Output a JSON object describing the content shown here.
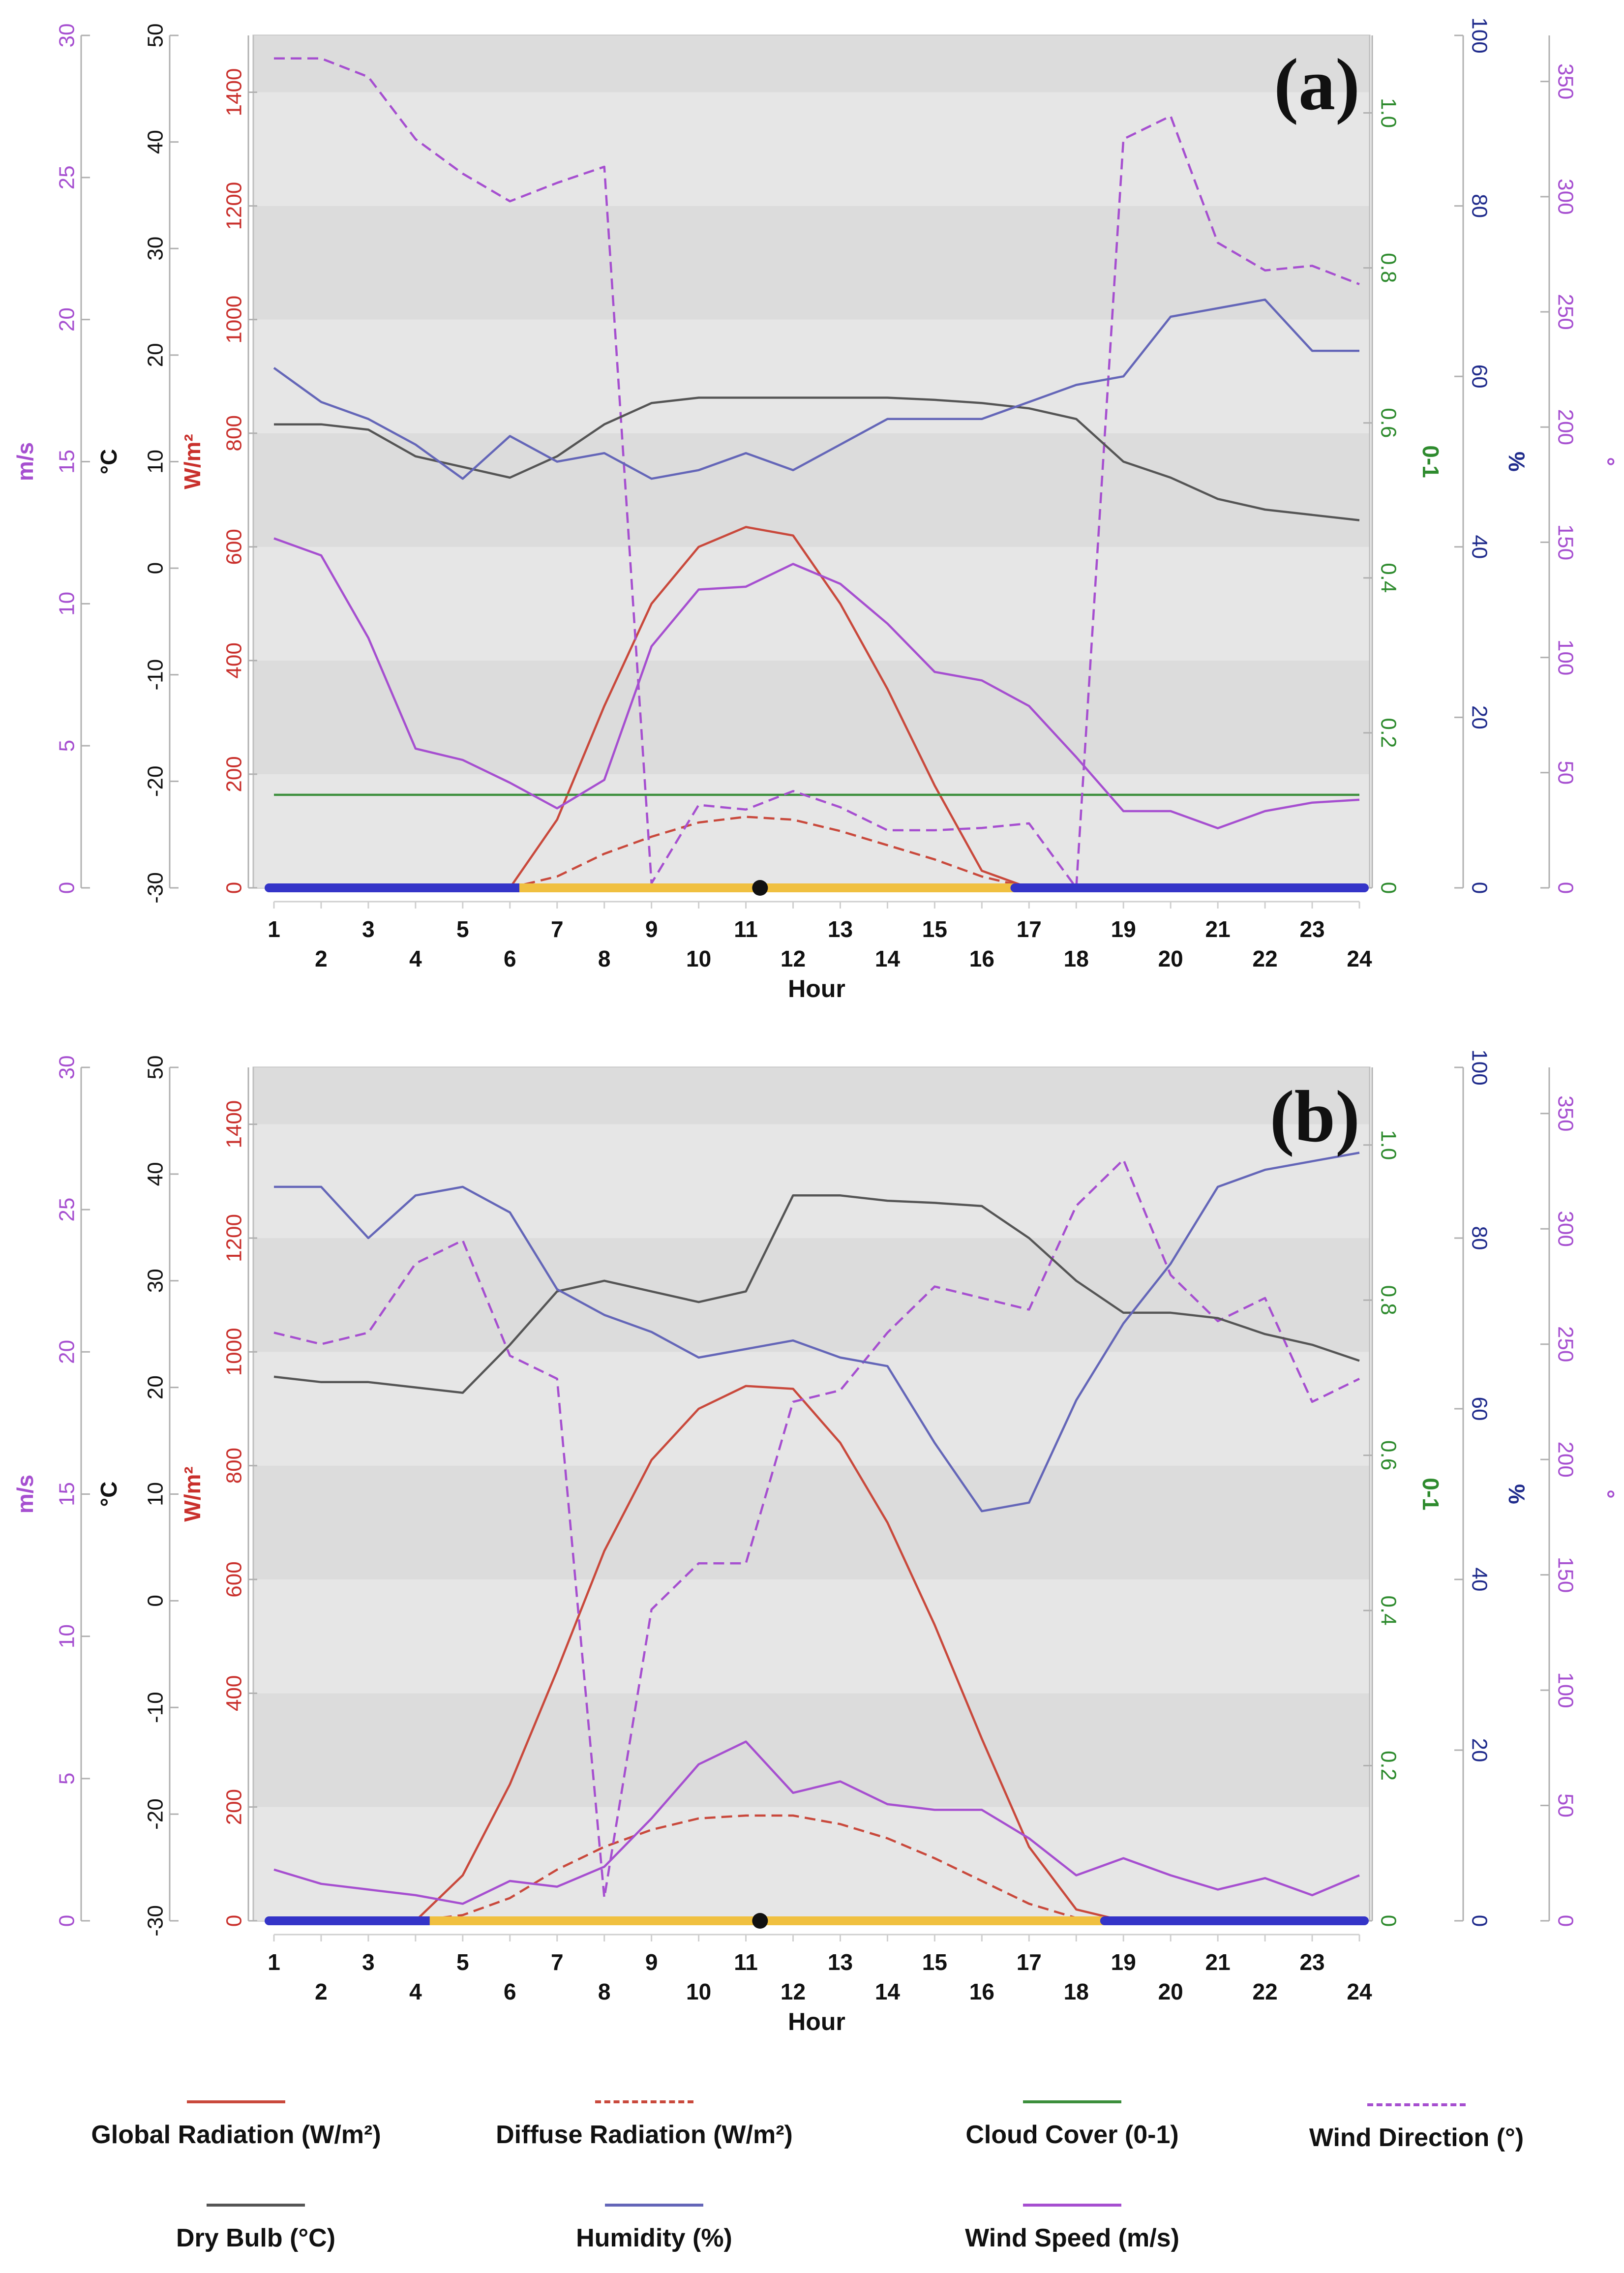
{
  "chart_data": [
    {
      "panel_label": "(a)",
      "type": "line",
      "xlabel": "Hour",
      "x": [
        1,
        2,
        3,
        4,
        5,
        6,
        7,
        8,
        9,
        10,
        11,
        12,
        13,
        14,
        15,
        16,
        17,
        18,
        19,
        20,
        21,
        22,
        23,
        24
      ],
      "xticks_top_row": [
        "1",
        "3",
        "5",
        "7",
        "9",
        "11",
        "13",
        "15",
        "17",
        "19",
        "21",
        "23"
      ],
      "xticks_bottom_row": [
        "2",
        "4",
        "6",
        "8",
        "10",
        "12",
        "14",
        "16",
        "18",
        "20",
        "22",
        "24"
      ],
      "axes": {
        "wind_speed": {
          "label": "m/s",
          "ylim": [
            0,
            30
          ],
          "ticks": [
            "0",
            "5",
            "10",
            "15",
            "20",
            "25",
            "30"
          ]
        },
        "dry_bulb": {
          "label": "°C",
          "ylim": [
            -30,
            50
          ],
          "ticks": [
            "-30",
            "-20",
            "-10",
            "0",
            "10",
            "20",
            "30",
            "40",
            "50"
          ]
        },
        "radiation": {
          "label": "W/m²",
          "ylim": [
            0,
            1500
          ],
          "ticks": [
            "0",
            "200",
            "400",
            "600",
            "800",
            "1000",
            "1200",
            "1400"
          ]
        },
        "cloud": {
          "label": "0-1",
          "ylim": [
            0,
            1.1
          ],
          "ticks": [
            "0",
            "0.2",
            "0.4",
            "0.6",
            "0.8",
            "1.0"
          ]
        },
        "humidity": {
          "label": "%",
          "ylim": [
            0,
            100
          ],
          "ticks": [
            "0",
            "20",
            "40",
            "60",
            "80",
            "100"
          ]
        },
        "wind_direction": {
          "label": "°",
          "ylim": [
            0,
            370
          ],
          "ticks": [
            "0",
            "50",
            "100",
            "150",
            "200",
            "250",
            "300",
            "350"
          ]
        }
      },
      "series": [
        {
          "name": "Global Radiation (W/m²)",
          "axis": "radiation",
          "color": "#c9493c",
          "dash": false,
          "values": [
            0,
            0,
            0,
            0,
            0,
            0,
            120,
            320,
            500,
            600,
            635,
            620,
            500,
            350,
            180,
            30,
            0,
            0,
            0,
            0,
            0,
            0,
            0,
            0
          ]
        },
        {
          "name": "Diffuse Radiation (W/m²)",
          "axis": "radiation",
          "color": "#c9493c",
          "dash": true,
          "values": [
            0,
            0,
            0,
            0,
            0,
            0,
            20,
            60,
            90,
            115,
            125,
            120,
            100,
            75,
            50,
            20,
            0,
            0,
            0,
            0,
            0,
            0,
            0,
            0
          ]
        },
        {
          "name": "Cloud Cover (0-1)",
          "axis": "cloud",
          "color": "#3c8f3c",
          "dash": false,
          "values": [
            0.12,
            0.12,
            0.12,
            0.12,
            0.12,
            0.12,
            0.12,
            0.12,
            0.12,
            0.12,
            0.12,
            0.12,
            0.12,
            0.12,
            0.12,
            0.12,
            0.12,
            0.12,
            0.12,
            0.12,
            0.12,
            0.12,
            0.12,
            0.12
          ]
        },
        {
          "name": "Wind Direction (°)",
          "axis": "wind_direction",
          "color": "#a64fd0",
          "dash": true,
          "values": [
            360,
            360,
            352,
            325,
            310,
            298,
            306,
            313,
            2,
            36,
            34,
            42,
            35,
            25,
            25,
            26,
            28,
            0,
            325,
            335,
            280,
            268,
            270,
            262
          ]
        },
        {
          "name": "Dry Bulb (°C)",
          "axis": "dry_bulb",
          "color": "#555555",
          "dash": false,
          "values": [
            13.5,
            13.5,
            13,
            10.5,
            9.5,
            8.5,
            10.5,
            13.5,
            15.5,
            16,
            16,
            16,
            16,
            16,
            15.8,
            15.5,
            15,
            14,
            10,
            8.5,
            6.5,
            5.5,
            5,
            4.5
          ]
        },
        {
          "name": "Humidity (%)",
          "axis": "humidity",
          "color": "#6466b8",
          "dash": false,
          "values": [
            61,
            57,
            55,
            52,
            48,
            53,
            50,
            51,
            48,
            49,
            51,
            49,
            52,
            55,
            55,
            55,
            57,
            59,
            60,
            67,
            68,
            69,
            63,
            63
          ]
        },
        {
          "name": "Wind Speed (m/s)",
          "axis": "wind_speed",
          "color": "#a64fd0",
          "dash": false,
          "values": [
            12.3,
            11.7,
            8.8,
            4.9,
            4.5,
            3.7,
            2.8,
            3.8,
            8.5,
            10.5,
            10.6,
            11.4,
            10.7,
            9.3,
            7.6,
            7.3,
            6.4,
            4.6,
            2.7,
            2.7,
            2.1,
            2.7,
            3,
            3.1
          ]
        }
      ],
      "daylight_bar": {
        "night_color": "#3434c8",
        "day_color": "#f0c040",
        "sunrise_hour": 6.2,
        "sunset_hour": 16.7,
        "marker_hour": 11.3
      }
    },
    {
      "panel_label": "(b)",
      "type": "line",
      "xlabel": "Hour",
      "x": [
        1,
        2,
        3,
        4,
        5,
        6,
        7,
        8,
        9,
        10,
        11,
        12,
        13,
        14,
        15,
        16,
        17,
        18,
        19,
        20,
        21,
        22,
        23,
        24
      ],
      "xticks_top_row": [
        "1",
        "3",
        "5",
        "7",
        "9",
        "11",
        "13",
        "15",
        "17",
        "19",
        "21",
        "23"
      ],
      "xticks_bottom_row": [
        "2",
        "4",
        "6",
        "8",
        "10",
        "12",
        "14",
        "16",
        "18",
        "20",
        "22",
        "24"
      ],
      "axes": {
        "wind_speed": {
          "label": "m/s",
          "ylim": [
            0,
            30
          ],
          "ticks": [
            "0",
            "5",
            "10",
            "15",
            "20",
            "25",
            "30"
          ]
        },
        "dry_bulb": {
          "label": "°C",
          "ylim": [
            -30,
            50
          ],
          "ticks": [
            "-30",
            "-20",
            "-10",
            "0",
            "10",
            "20",
            "30",
            "40",
            "50"
          ]
        },
        "radiation": {
          "label": "W/m²",
          "ylim": [
            0,
            1500
          ],
          "ticks": [
            "0",
            "200",
            "400",
            "600",
            "800",
            "1000",
            "1200",
            "1400"
          ]
        },
        "cloud": {
          "label": "0-1",
          "ylim": [
            0,
            1.1
          ],
          "ticks": [
            "0",
            "0.2",
            "0.4",
            "0.6",
            "0.8",
            "1.0"
          ]
        },
        "humidity": {
          "label": "%",
          "ylim": [
            0,
            100
          ],
          "ticks": [
            "0",
            "20",
            "40",
            "60",
            "80",
            "100"
          ]
        },
        "wind_direction": {
          "label": "°",
          "ylim": [
            0,
            370
          ],
          "ticks": [
            "0",
            "50",
            "100",
            "150",
            "200",
            "250",
            "300",
            "350"
          ]
        }
      },
      "series": [
        {
          "name": "Global Radiation (W/m²)",
          "axis": "radiation",
          "color": "#c9493c",
          "dash": false,
          "values": [
            0,
            0,
            0,
            0,
            80,
            240,
            440,
            650,
            810,
            900,
            940,
            935,
            840,
            700,
            520,
            320,
            130,
            20,
            0,
            0,
            0,
            0,
            0,
            0
          ]
        },
        {
          "name": "Diffuse Radiation (W/m²)",
          "axis": "radiation",
          "color": "#c9493c",
          "dash": true,
          "values": [
            0,
            0,
            0,
            0,
            10,
            40,
            90,
            130,
            160,
            180,
            185,
            185,
            170,
            145,
            110,
            70,
            30,
            5,
            0,
            0,
            0,
            0,
            0,
            0
          ]
        },
        {
          "name": "Cloud Cover (0-1)",
          "axis": "cloud",
          "color": "#3c8f3c",
          "dash": false,
          "values": [
            0,
            0,
            0,
            0,
            0,
            0,
            0,
            0,
            0,
            0,
            0,
            0,
            0,
            0,
            0,
            0,
            0,
            0,
            0,
            0,
            0,
            0,
            0,
            0
          ]
        },
        {
          "name": "Wind Direction (°)",
          "axis": "wind_direction",
          "color": "#a64fd0",
          "dash": true,
          "values": [
            255,
            250,
            255,
            285,
            295,
            245,
            235,
            10,
            135,
            155,
            155,
            225,
            230,
            255,
            275,
            270,
            265,
            310,
            330,
            280,
            260,
            270,
            225,
            235
          ]
        },
        {
          "name": "Dry Bulb (°C)",
          "axis": "dry_bulb",
          "color": "#555555",
          "dash": false,
          "values": [
            21,
            20.5,
            20.5,
            20,
            19.5,
            24,
            29,
            30,
            29,
            28,
            29,
            38,
            38,
            37.5,
            37.3,
            37,
            34,
            30,
            27,
            27,
            26.5,
            25,
            24,
            22.5
          ]
        },
        {
          "name": "Humidity (%)",
          "axis": "humidity",
          "color": "#6466b8",
          "dash": false,
          "values": [
            86,
            86,
            80,
            85,
            86,
            83,
            74,
            71,
            69,
            66,
            67,
            68,
            66,
            65,
            56,
            48,
            49,
            61,
            70,
            77,
            86,
            88,
            89,
            90
          ]
        },
        {
          "name": "Wind Speed (m/s)",
          "axis": "wind_speed",
          "color": "#a64fd0",
          "dash": false,
          "values": [
            1.8,
            1.3,
            1.1,
            0.9,
            0.6,
            1.4,
            1.2,
            1.9,
            3.6,
            5.5,
            6.3,
            4.5,
            4.9,
            4.1,
            3.9,
            3.9,
            2.9,
            1.6,
            2.2,
            1.6,
            1.1,
            1.5,
            0.9,
            1.6
          ]
        }
      ],
      "daylight_bar": {
        "night_color": "#3434c8",
        "day_color": "#f0c040",
        "sunrise_hour": 4.3,
        "sunset_hour": 18.6,
        "marker_hour": 11.3
      }
    }
  ],
  "legend": [
    {
      "label": "Global Radiation (W/m²)",
      "color": "#c9493c",
      "dash": false
    },
    {
      "label": "Diffuse Radiation (W/m²)",
      "color": "#c9493c",
      "dash": true
    },
    {
      "label": "Cloud Cover (0-1)",
      "color": "#3c8f3c",
      "dash": false
    },
    {
      "label": "Wind Direction (°)",
      "color": "#a64fd0",
      "dash": true
    },
    {
      "label": "Dry Bulb (°C)",
      "color": "#555555",
      "dash": false
    },
    {
      "label": "Humidity (%)",
      "color": "#6466b8",
      "dash": false
    },
    {
      "label": "Wind Speed (m/s)",
      "color": "#a64fd0",
      "dash": false
    }
  ],
  "axis_colors": {
    "wind_speed": "#a64fd0",
    "dry_bulb": "#111111",
    "radiation": "#c9302c",
    "cloud": "#2e8b2e",
    "humidity": "#1f2b8c",
    "wind_direction": "#a64fd0",
    "hour": "#111111"
  }
}
